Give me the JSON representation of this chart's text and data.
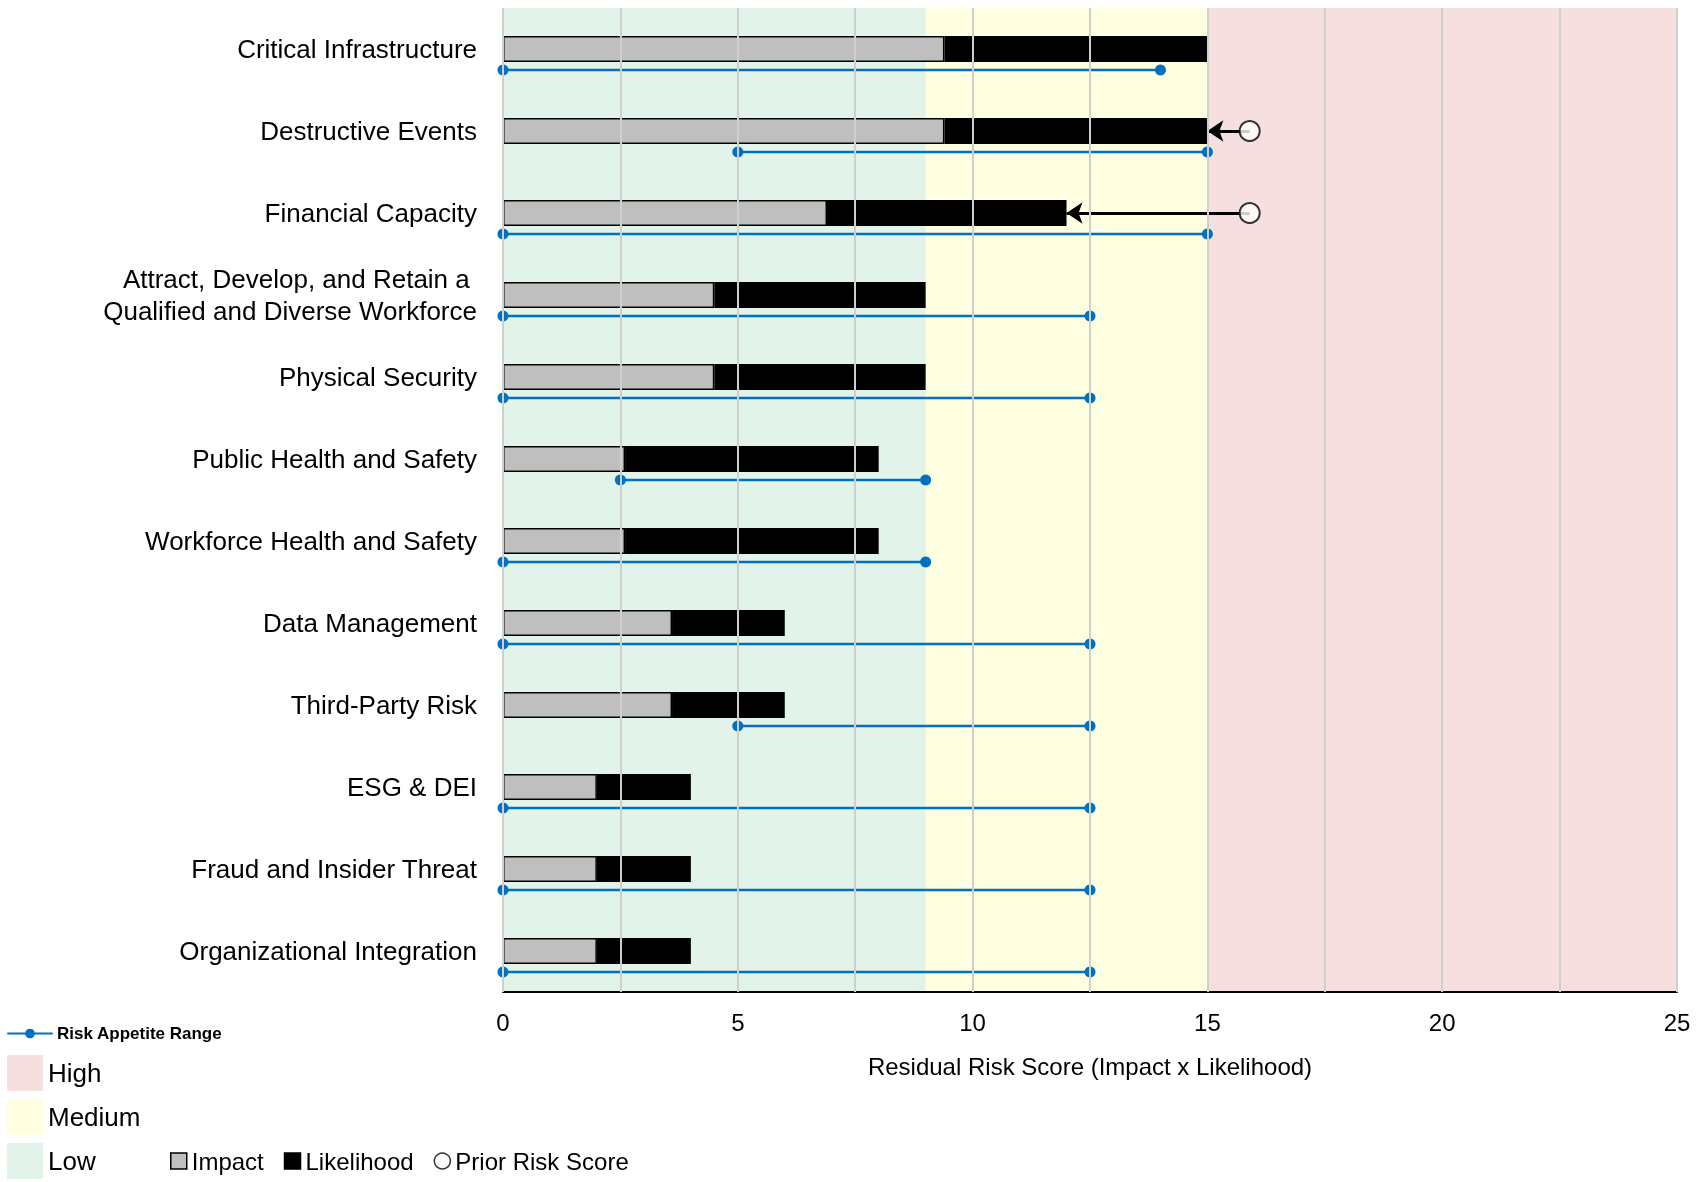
{
  "chart_data": {
    "type": "bar",
    "orientation": "horizontal",
    "stacked": true,
    "xlabel": "Residual Risk Score (Impact x Likelihood)",
    "categories": [
      "Critical Infrastructure",
      "Destructive Events",
      "Financial Capacity",
      "Attract, Develop, and Retain a Qualified and Diverse Workforce",
      "Physical Security",
      "Public Health and Safety",
      "Workforce Health and Safety",
      "Data Management",
      "Third-Party Risk",
      "ESG & DEI",
      "Fraud and Insider Threat",
      "Organizational Integration"
    ],
    "series": [
      {
        "name": "Impact",
        "color": "#bfbfbf",
        "values": [
          9.4,
          9.4,
          6.9,
          4.5,
          4.5,
          2.6,
          2.6,
          3.6,
          3.6,
          2,
          2,
          2
        ]
      },
      {
        "name": "Likelihood",
        "color": "#000000",
        "values": [
          5.6,
          5.6,
          5.1,
          4.5,
          4.5,
          5.4,
          5.4,
          2.4,
          2.4,
          2,
          2,
          2
        ]
      },
      {
        "name": "Prior Risk Score",
        "type": "scatter",
        "marker": "circle",
        "color": "#ffffff",
        "values": [
          null,
          15.9,
          15.9,
          null,
          null,
          null,
          null,
          null,
          null,
          null,
          null,
          null
        ]
      },
      {
        "name": "Risk Appetite Range",
        "type": "line",
        "color": "#0070c0",
        "marker": "circle",
        "line_style": "solid",
        "x": [
          "Critical Infrastructure",
          "Critical Infrastructure",
          "Critical Infrastructure",
          "Destructive Events",
          "Destructive Events",
          "Destructive Events",
          "Financial Capacity",
          "Financial Capacity",
          "Financial Capacity",
          "Attract, Develop, and Retain a Qualified and Diverse Workforce",
          "Attract, Develop, and Retain a Qualified and Diverse Workforce",
          "Attract, Develop, and Retain a Qualified and Diverse Workforce",
          "Physical Security",
          "Physical Security",
          "Physical Security",
          "Public Health and Safety",
          "Public Health and Safety",
          "Public Health and Safety",
          "Workforce Health and Safety",
          "Workforce Health and Safety",
          "Workforce Health and Safety",
          "Data Management",
          "Data Management",
          "Data Management",
          "Third-Party Risk",
          "Third-Party Risk",
          "Third-Party Risk",
          "ESG & DEI",
          "ESG & DEI",
          "ESG & DEI",
          "Fraud and Insider Threat",
          "Fraud and Insider Threat",
          "Fraud and Insider Threat",
          "Organizational Integration",
          "Organizational Integration"
        ],
        "values": [
          0,
          14,
          null,
          5,
          15,
          null,
          0,
          15,
          null,
          0,
          12.5,
          null,
          0,
          12.5,
          null,
          2.5,
          9,
          null,
          0,
          9,
          null,
          0,
          12.5,
          null,
          5,
          12.5,
          null,
          0,
          12.5,
          null,
          0,
          12.5,
          null,
          0,
          12.5
        ]
      }
    ],
    "xlim": [
      0,
      25
    ],
    "xticks": [
      0,
      {
        "value": 2.5,
        "label": null
      },
      5,
      {
        "value": 7.5,
        "label": null
      },
      10,
      {
        "value": 12.5,
        "label": null
      },
      15,
      {
        "value": 17.5,
        "label": null
      },
      20,
      {
        "value": 22.5,
        "label": null
      },
      25
    ],
    "grid": "x",
    "legend": "bottom left",
    "bands": [
      {
        "axis": "x",
        "from": 15,
        "to": 25,
        "label": "High",
        "color": "#f5dfdf"
      },
      {
        "axis": "x",
        "from": 9,
        "to": 15,
        "label": "Medium",
        "color": "#fefee0"
      },
      {
        "axis": "x",
        "from": 0,
        "to": 9,
        "label": "Low",
        "color": "#e2f3ea"
      }
    ]
  }
}
